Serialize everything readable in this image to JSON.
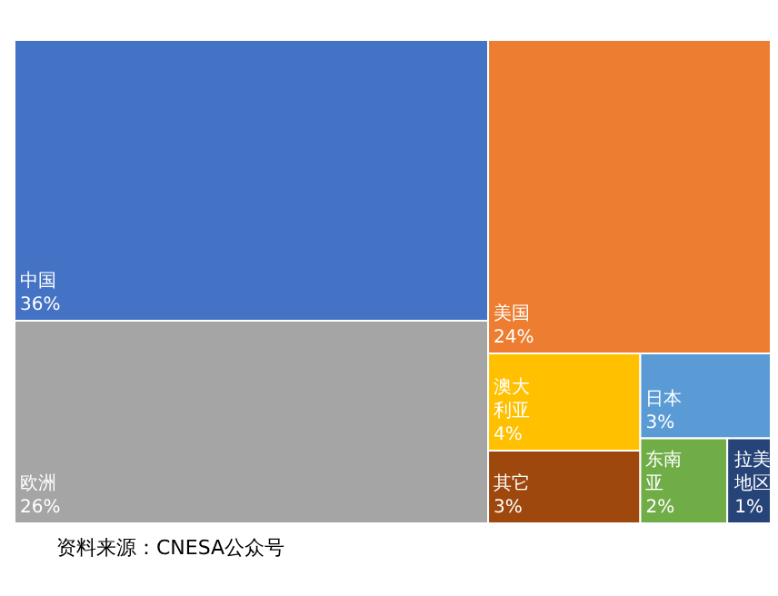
{
  "chart_data": {
    "type": "other",
    "categories": [
      "中国",
      "欧洲",
      "美国",
      "澳大利亚",
      "其它",
      "日本",
      "东南亚",
      "拉美地区"
    ],
    "values": [
      36,
      26,
      24,
      4,
      3,
      3,
      2,
      1
    ],
    "value_labels": [
      "36%",
      "26%",
      "24%",
      "4%",
      "3%",
      "3%",
      "2%",
      "1%"
    ],
    "colors": [
      "#4472c4",
      "#a5a5a5",
      "#ed7d31",
      "#ffc000",
      "#9e480e",
      "#5b9bd5",
      "#70ad47",
      "#264478"
    ],
    "annotations": [
      "资料来源：CNESA公众号"
    ]
  }
}
